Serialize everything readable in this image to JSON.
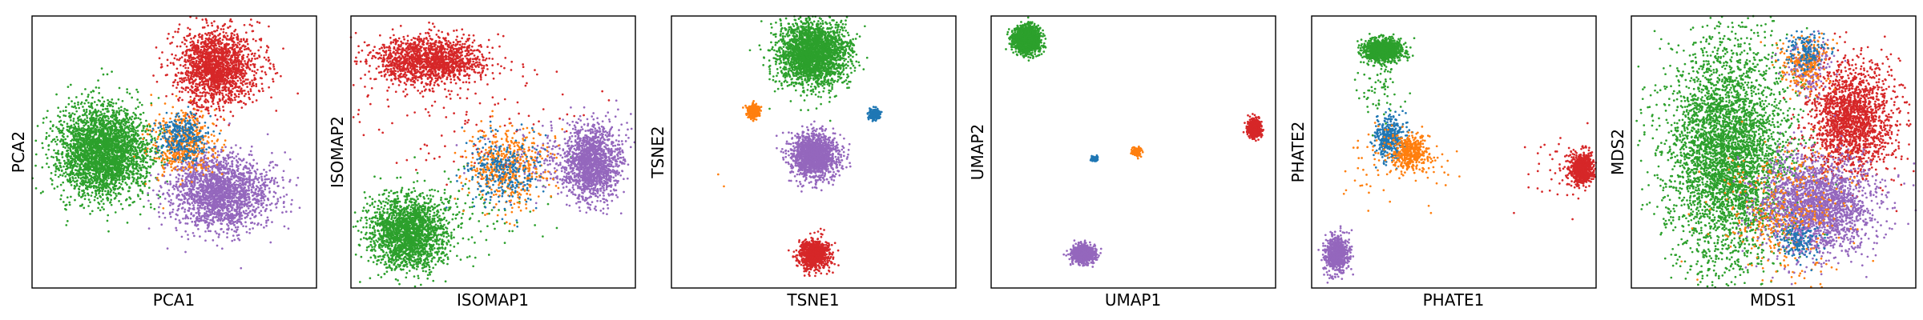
{
  "figure": {
    "panel_count": 6,
    "colors": {
      "blue": "#1f77b4",
      "orange": "#ff7f0e",
      "green": "#2ca02c",
      "red": "#d62728",
      "purple": "#9467bd"
    }
  },
  "chart_data": [
    {
      "type": "scatter",
      "title": "",
      "xlabel": "PCA1",
      "ylabel": "PCA2",
      "xticks": [],
      "yticks": [],
      "xlim": [
        -4,
        4
      ],
      "ylim": [
        -4,
        4
      ],
      "grid": false,
      "legend": false,
      "series": [
        {
          "color": "#2ca02c",
          "clusters": [
            {
              "cx": -2.0,
              "cy": 0.0,
              "sx": 0.65,
              "sy": 0.65,
              "n": 3000
            }
          ]
        },
        {
          "color": "#d62728",
          "clusters": [
            {
              "cx": 1.2,
              "cy": 2.5,
              "sx": 0.55,
              "sy": 0.55,
              "n": 1800
            }
          ]
        },
        {
          "color": "#9467bd",
          "clusters": [
            {
              "cx": 1.3,
              "cy": -1.2,
              "sx": 0.7,
              "sy": 0.55,
              "n": 2000
            }
          ]
        },
        {
          "color": "#ff7f0e",
          "clusters": [
            {
              "cx": 0.3,
              "cy": 0.3,
              "sx": 0.45,
              "sy": 0.45,
              "n": 500
            }
          ]
        },
        {
          "color": "#1f77b4",
          "clusters": [
            {
              "cx": 0.2,
              "cy": 0.4,
              "sx": 0.35,
              "sy": 0.35,
              "n": 300
            }
          ]
        }
      ]
    },
    {
      "type": "scatter",
      "title": "",
      "xlabel": "ISOMAP1",
      "ylabel": "ISOMAP2",
      "xticks": [],
      "yticks": [],
      "xlim": [
        -4,
        4
      ],
      "ylim": [
        -4,
        4
      ],
      "grid": false,
      "legend": false,
      "series": [
        {
          "color": "#d62728",
          "clusters": [
            {
              "cx": -1.8,
              "cy": 2.7,
              "sx": 0.8,
              "sy": 0.35,
              "n": 1500
            },
            {
              "cx": -1.0,
              "cy": 1.0,
              "sx": 1.8,
              "sy": 1.0,
              "n": 120
            }
          ]
        },
        {
          "color": "#2ca02c",
          "clusters": [
            {
              "cx": -2.4,
              "cy": -2.4,
              "sx": 0.55,
              "sy": 0.55,
              "n": 2000
            },
            {
              "cx": -1.0,
              "cy": -1.8,
              "sx": 1.2,
              "sy": 0.7,
              "n": 150
            }
          ]
        },
        {
          "color": "#9467bd",
          "clusters": [
            {
              "cx": 2.8,
              "cy": -0.3,
              "sx": 0.4,
              "sy": 0.55,
              "n": 1500
            },
            {
              "cx": 1.6,
              "cy": -0.2,
              "sx": 0.8,
              "sy": 0.5,
              "n": 150
            }
          ]
        },
        {
          "color": "#ff7f0e",
          "clusters": [
            {
              "cx": 0.4,
              "cy": -0.4,
              "sx": 0.6,
              "sy": 0.6,
              "n": 500
            }
          ]
        },
        {
          "color": "#1f77b4",
          "clusters": [
            {
              "cx": 0.3,
              "cy": -0.5,
              "sx": 0.55,
              "sy": 0.55,
              "n": 300
            }
          ]
        }
      ]
    },
    {
      "type": "scatter",
      "title": "",
      "xlabel": "TSNE1",
      "ylabel": "TSNE2",
      "xticks": [],
      "yticks": [],
      "xlim": [
        -4,
        4
      ],
      "ylim": [
        -4,
        4
      ],
      "grid": false,
      "legend": false,
      "series": [
        {
          "color": "#2ca02c",
          "clusters": [
            {
              "cx": 0.0,
              "cy": 2.9,
              "sx": 0.48,
              "sy": 0.48,
              "n": 2500
            }
          ]
        },
        {
          "color": "#9467bd",
          "clusters": [
            {
              "cx": 0.0,
              "cy": -0.1,
              "sx": 0.33,
              "sy": 0.33,
              "n": 1500
            }
          ]
        },
        {
          "color": "#d62728",
          "clusters": [
            {
              "cx": 0.0,
              "cy": -3.0,
              "sx": 0.22,
              "sy": 0.22,
              "n": 800
            }
          ]
        },
        {
          "color": "#ff7f0e",
          "clusters": [
            {
              "cx": -1.7,
              "cy": 1.2,
              "sx": 0.09,
              "sy": 0.09,
              "n": 300
            },
            {
              "cx": -3.0,
              "cy": -1.0,
              "sx": 0.3,
              "sy": 0.3,
              "n": 2
            }
          ]
        },
        {
          "color": "#1f77b4",
          "clusters": [
            {
              "cx": 1.7,
              "cy": 1.1,
              "sx": 0.08,
              "sy": 0.08,
              "n": 250
            }
          ]
        }
      ]
    },
    {
      "type": "scatter",
      "title": "",
      "xlabel": "UMAP1",
      "ylabel": "UMAP2",
      "xticks": [],
      "yticks": [],
      "xlim": [
        -4,
        4
      ],
      "ylim": [
        -4,
        4
      ],
      "grid": false,
      "legend": false,
      "series": [
        {
          "color": "#2ca02c",
          "clusters": [
            {
              "cx": -3.0,
              "cy": 3.3,
              "sx": 0.2,
              "sy": 0.2,
              "n": 1200
            }
          ]
        },
        {
          "color": "#d62728",
          "clusters": [
            {
              "cx": 3.4,
              "cy": 0.7,
              "sx": 0.09,
              "sy": 0.12,
              "n": 600
            }
          ]
        },
        {
          "color": "#9467bd",
          "clusters": [
            {
              "cx": -1.4,
              "cy": -3.0,
              "sx": 0.17,
              "sy": 0.13,
              "n": 800
            }
          ]
        },
        {
          "color": "#ff7f0e",
          "clusters": [
            {
              "cx": 0.1,
              "cy": 0.0,
              "sx": 0.06,
              "sy": 0.06,
              "n": 150
            }
          ]
        },
        {
          "color": "#1f77b4",
          "clusters": [
            {
              "cx": -1.1,
              "cy": -0.2,
              "sx": 0.04,
              "sy": 0.04,
              "n": 100
            }
          ]
        }
      ]
    },
    {
      "type": "scatter",
      "title": "",
      "xlabel": "PHATE1",
      "ylabel": "PHATE2",
      "xticks": [],
      "yticks": [],
      "xlim": [
        -4,
        4
      ],
      "ylim": [
        -4,
        4
      ],
      "grid": false,
      "legend": false,
      "series": [
        {
          "color": "#2ca02c",
          "clusters": [
            {
              "cx": -2.0,
              "cy": 3.0,
              "sx": 0.28,
              "sy": 0.17,
              "n": 1000
            },
            {
              "cx": -2.1,
              "cy": 2.0,
              "sx": 0.3,
              "sy": 0.6,
              "n": 80
            }
          ]
        },
        {
          "color": "#d62728",
          "clusters": [
            {
              "cx": 3.6,
              "cy": -0.5,
              "sx": 0.16,
              "sy": 0.22,
              "n": 700
            },
            {
              "cx": 3.0,
              "cy": -0.5,
              "sx": 0.5,
              "sy": 0.6,
              "n": 50
            }
          ]
        },
        {
          "color": "#9467bd",
          "clusters": [
            {
              "cx": -3.3,
              "cy": -3.0,
              "sx": 0.16,
              "sy": 0.28,
              "n": 700
            }
          ]
        },
        {
          "color": "#1f77b4",
          "clusters": [
            {
              "cx": -1.8,
              "cy": 0.4,
              "sx": 0.22,
              "sy": 0.35,
              "n": 400
            }
          ]
        },
        {
          "color": "#ff7f0e",
          "clusters": [
            {
              "cx": -1.2,
              "cy": 0.0,
              "sx": 0.25,
              "sy": 0.25,
              "n": 400
            },
            {
              "cx": -1.6,
              "cy": -0.4,
              "sx": 0.7,
              "sy": 0.6,
              "n": 100
            }
          ]
        }
      ]
    },
    {
      "type": "scatter",
      "title": "",
      "xlabel": "MDS1",
      "ylabel": "MDS2",
      "xticks": [],
      "yticks": [],
      "xlim": [
        -4,
        4
      ],
      "ylim": [
        -4,
        4
      ],
      "grid": false,
      "legend": false,
      "series": [
        {
          "color": "#2ca02c",
          "clusters": [
            {
              "cx": -1.3,
              "cy": 0.0,
              "sx": 0.85,
              "sy": 1.6,
              "n": 4000
            }
          ]
        },
        {
          "color": "#d62728",
          "clusters": [
            {
              "cx": 2.2,
              "cy": 1.0,
              "sx": 0.6,
              "sy": 0.8,
              "n": 1800
            }
          ]
        },
        {
          "color": "#9467bd",
          "clusters": [
            {
              "cx": 1.2,
              "cy": -1.6,
              "sx": 0.8,
              "sy": 0.7,
              "n": 2200
            },
            {
              "cx": 1.0,
              "cy": 2.5,
              "sx": 0.3,
              "sy": 0.4,
              "n": 200
            }
          ]
        },
        {
          "color": "#ff7f0e",
          "clusters": [
            {
              "cx": 0.4,
              "cy": -1.8,
              "sx": 0.9,
              "sy": 1.0,
              "n": 400
            },
            {
              "cx": 0.9,
              "cy": 2.6,
              "sx": 0.35,
              "sy": 0.4,
              "n": 250
            }
          ]
        },
        {
          "color": "#1f77b4",
          "clusters": [
            {
              "cx": 0.7,
              "cy": -2.6,
              "sx": 0.3,
              "sy": 0.3,
              "n": 150
            },
            {
              "cx": 0.9,
              "cy": 3.0,
              "sx": 0.3,
              "sy": 0.3,
              "n": 150
            }
          ]
        }
      ]
    }
  ]
}
